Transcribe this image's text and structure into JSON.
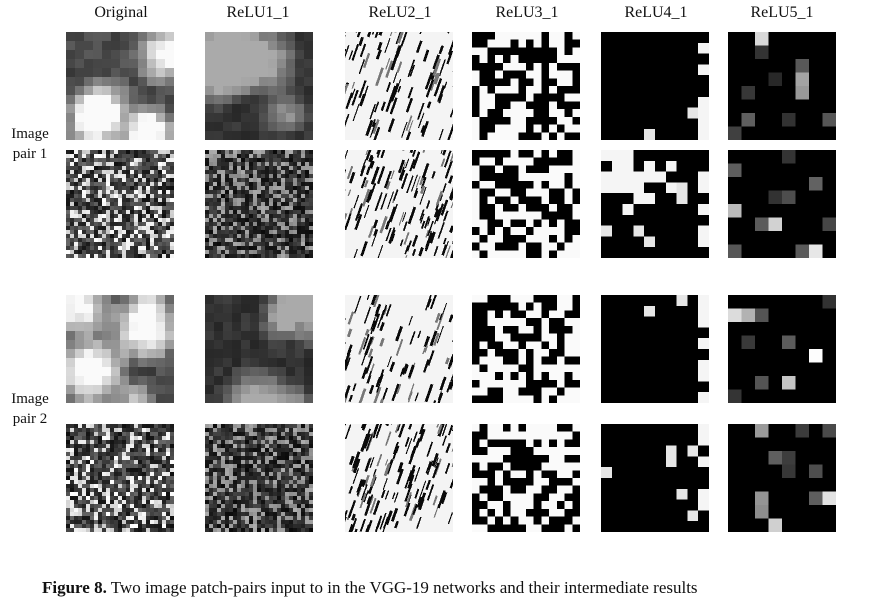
{
  "columns": [
    "Original",
    "ReLU1_1",
    "ReLU2_1",
    "ReLU3_1",
    "ReLU4_1",
    "ReLU5_1"
  ],
  "row_groups": [
    {
      "label_line1": "Image",
      "label_line2": "pair 1"
    },
    {
      "label_line1": "Image",
      "label_line2": "pair 2"
    }
  ],
  "caption": {
    "label": "Figure 8.",
    "text": " Two image patch-pairs input to in the VGG-19 networks and their intermediate results"
  }
}
